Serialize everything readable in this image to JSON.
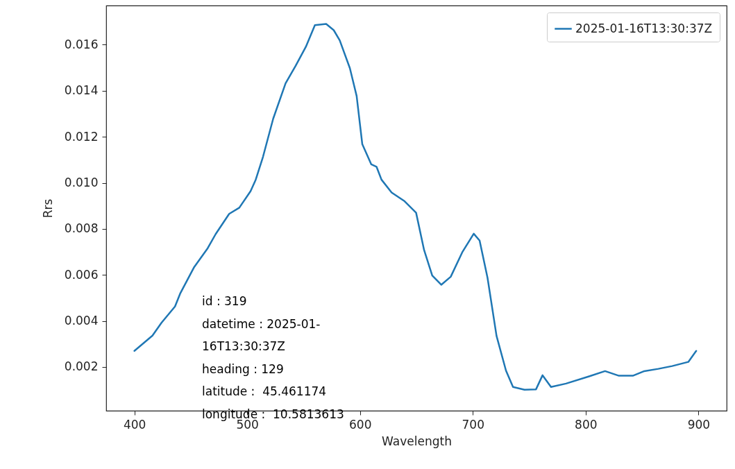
{
  "chart_data": {
    "type": "line",
    "xlabel": "Wavelength",
    "ylabel": "Rrs",
    "xlim": [
      375,
      925
    ],
    "xticks": [
      400,
      500,
      600,
      700,
      800,
      900
    ],
    "ylim": [
      0.0001,
      0.0177
    ],
    "yticks": [
      0.002,
      0.004,
      0.006,
      0.008,
      {
        "value": 0.01,
        "label": "0.010"
      },
      0.012,
      0.014,
      0.016
    ],
    "grid": false,
    "legend": "top right",
    "annotations": [
      "id : 319",
      "datetime : 2025-01-",
      "16T13:30:37Z",
      "heading : 129",
      "latitude :  45.461174",
      "longitude :  10.5813613"
    ],
    "series": [
      {
        "name": "2025-01-16T13:30:37Z",
        "color": "#1f77b4",
        "x": [
          400,
          416,
          424,
          436,
          440.5,
          453,
          465,
          472,
          484,
          493,
          503,
          507.5,
          514,
          523,
          534,
          543,
          552,
          560,
          570,
          576.7,
          582,
          591,
          597,
          602,
          610,
          614.6,
          619,
          628,
          639.5,
          649.7,
          656.8,
          664,
          672,
          680.4,
          690.6,
          700.8,
          706,
          713,
          721,
          729.4,
          735.6,
          745.8,
          756,
          761.8,
          769.3,
          782.6,
          803,
          817.2,
          829.5,
          841.8,
          852,
          864.4,
          876.7,
          891,
          898
        ],
        "values": [
          0.0027,
          0.00336,
          0.00392,
          0.00463,
          0.00518,
          0.00634,
          0.00716,
          0.00777,
          0.00865,
          0.00892,
          0.00964,
          0.01013,
          0.01113,
          0.01278,
          0.01432,
          0.01509,
          0.01591,
          0.01685,
          0.0169,
          0.01663,
          0.01619,
          0.01498,
          0.01377,
          0.01168,
          0.0108,
          0.0107,
          0.01014,
          0.00958,
          0.0092,
          0.0087,
          0.00708,
          0.00597,
          0.00557,
          0.00592,
          0.00698,
          0.00779,
          0.00749,
          0.00588,
          0.00335,
          0.00184,
          0.00113,
          0.00101,
          0.00103,
          0.00164,
          0.00113,
          0.00128,
          0.00159,
          0.00182,
          0.00162,
          0.00162,
          0.00182,
          0.00192,
          0.00204,
          0.00222,
          0.0027
        ]
      }
    ]
  }
}
